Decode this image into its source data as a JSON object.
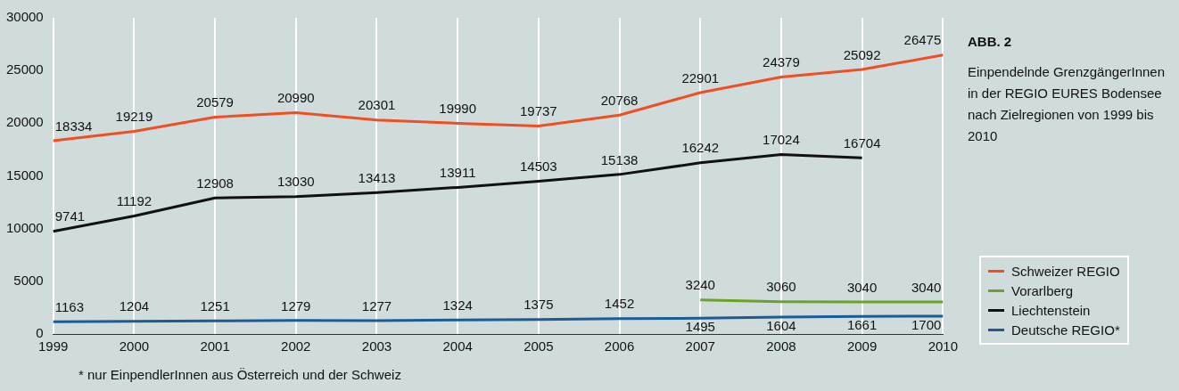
{
  "chart_data": {
    "type": "line",
    "title": "ABB. 2",
    "subtitle": "Einpendelnde GrenzgängerInnen in der REGIO EURES Bodensee nach Zielregionen von 1999 bis 2010",
    "categories": [
      "1999",
      "2000",
      "2001",
      "2002",
      "2003",
      "2004",
      "2005",
      "2006",
      "2007",
      "2008",
      "2009",
      "2010"
    ],
    "series": [
      {
        "name": "Schweizer REGIO",
        "color": "#f04e23",
        "values": [
          18334,
          19219,
          20579,
          20990,
          20301,
          19990,
          19737,
          20768,
          22901,
          24379,
          25092,
          26475
        ]
      },
      {
        "name": "Vorarlberg",
        "color": "#6aa329",
        "values": [
          null,
          null,
          null,
          null,
          null,
          null,
          null,
          null,
          3240,
          3060,
          3040,
          3040
        ]
      },
      {
        "name": "Liechtenstein",
        "color": "#111111",
        "values": [
          9741,
          11192,
          12908,
          13030,
          13413,
          13911,
          14503,
          15138,
          16242,
          17024,
          16704,
          null
        ]
      },
      {
        "name": "Deutsche REGIO*",
        "color": "#1c5b93",
        "values": [
          1163,
          1204,
          1251,
          1279,
          1277,
          1324,
          1375,
          1452,
          1495,
          1604,
          1661,
          1700
        ]
      }
    ],
    "ylim": [
      0,
      30000
    ],
    "yticks": [
      0,
      5000,
      10000,
      15000,
      20000,
      25000,
      30000
    ],
    "grid": "x",
    "legend": "bottom right",
    "marker": "none",
    "line_style": "solid",
    "data_labels": true,
    "annotations": [
      "* nur EinpendlerInnen aus Österreich und der Schweiz"
    ]
  }
}
